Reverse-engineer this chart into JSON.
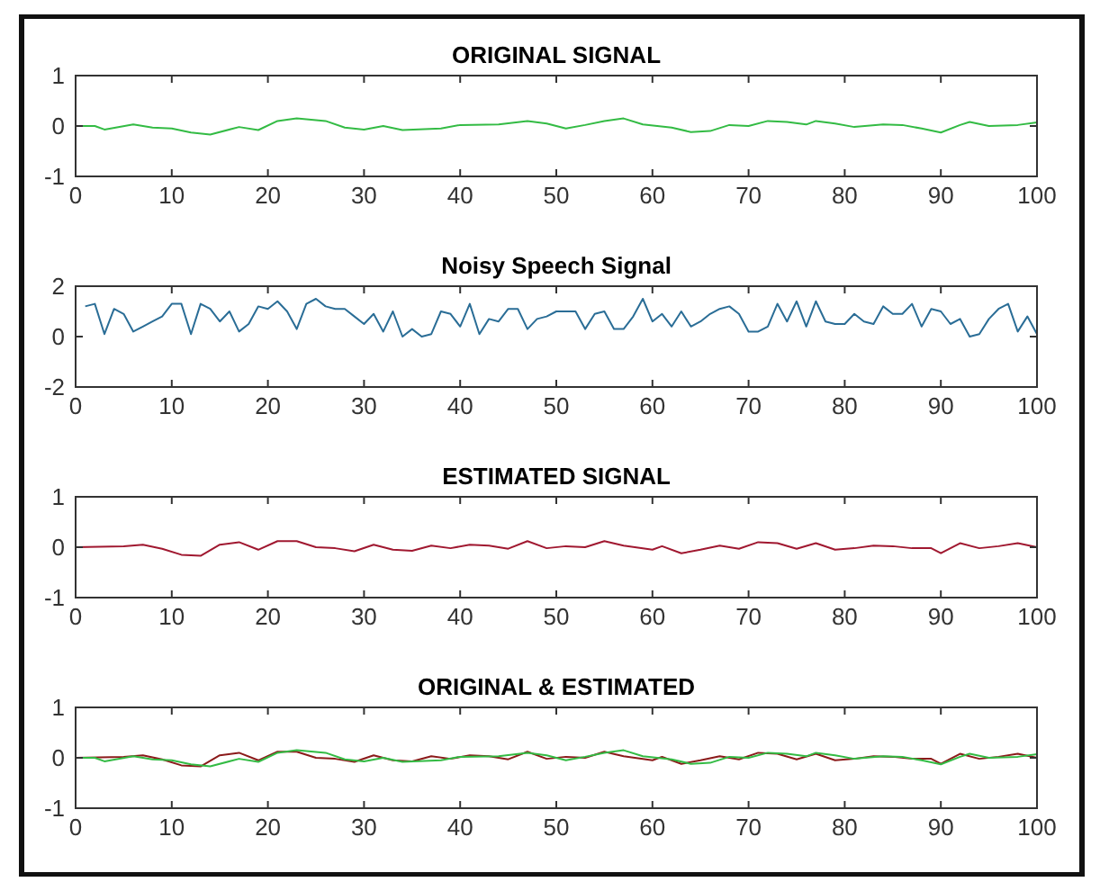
{
  "chart_data": [
    {
      "type": "line",
      "title": "ORIGINAL SIGNAL",
      "xlim": [
        0,
        100
      ],
      "ylim": [
        -1,
        1
      ],
      "xticks": [
        0,
        10,
        20,
        30,
        40,
        50,
        60,
        70,
        80,
        90,
        100
      ],
      "yticks": [
        -1,
        0,
        1
      ],
      "series": [
        {
          "color": "#33bb44",
          "x": [
            0,
            2,
            3,
            6,
            8,
            10,
            12,
            14,
            17,
            19,
            21,
            23,
            26,
            28,
            30,
            32,
            34,
            38,
            40,
            44,
            47,
            49,
            51,
            53,
            55,
            57,
            59,
            62,
            64,
            66,
            68,
            70,
            72,
            74,
            76,
            77,
            79,
            81,
            84,
            86,
            88,
            90,
            92,
            93,
            95,
            98,
            100
          ],
          "values": [
            0,
            0,
            -0.07,
            0.03,
            -0.03,
            -0.05,
            -0.13,
            -0.17,
            -0.02,
            -0.08,
            0.1,
            0.15,
            0.1,
            -0.03,
            -0.07,
            0,
            -0.08,
            -0.05,
            0.02,
            0.03,
            0.1,
            0.05,
            -0.05,
            0.02,
            0.1,
            0.15,
            0.03,
            -0.03,
            -0.12,
            -0.1,
            0.02,
            0,
            0.1,
            0.08,
            0.03,
            0.1,
            0.05,
            -0.02,
            0.03,
            0.02,
            -0.05,
            -0.13,
            0.02,
            0.08,
            0,
            0.02,
            0.07
          ]
        }
      ]
    },
    {
      "type": "line",
      "title": "Noisy Speech Signal",
      "xlim": [
        0,
        100
      ],
      "ylim": [
        -2,
        2
      ],
      "xticks": [
        0,
        10,
        20,
        30,
        40,
        50,
        60,
        70,
        80,
        90,
        100
      ],
      "yticks": [
        -2,
        0,
        2
      ],
      "series": [
        {
          "color": "#2a6d96",
          "x": [
            1,
            2,
            3,
            4,
            5,
            6,
            7,
            8,
            9,
            10,
            11,
            12,
            13,
            14,
            15,
            16,
            17,
            18,
            19,
            20,
            21,
            22,
            23,
            24,
            25,
            26,
            27,
            28,
            29,
            30,
            31,
            32,
            33,
            34,
            35,
            36,
            37,
            38,
            39,
            40,
            41,
            42,
            43,
            44,
            45,
            46,
            47,
            48,
            49,
            50,
            51,
            52,
            53,
            54,
            55,
            56,
            57,
            58,
            59,
            60,
            61,
            62,
            63,
            64,
            65,
            66,
            67,
            68,
            69,
            70,
            71,
            72,
            73,
            74,
            75,
            76,
            77,
            78,
            79,
            80,
            81,
            82,
            83,
            84,
            85,
            86,
            87,
            88,
            89,
            90,
            91,
            92,
            93,
            94,
            95,
            96,
            97,
            98,
            99,
            100
          ],
          "values": [
            1.2,
            1.3,
            0.1,
            1.1,
            0.9,
            0.2,
            0.4,
            0.6,
            0.8,
            1.3,
            1.3,
            0.1,
            1.3,
            1.1,
            0.6,
            1.0,
            0.2,
            0.5,
            1.2,
            1.1,
            1.4,
            1.0,
            0.3,
            1.3,
            1.5,
            1.2,
            1.1,
            1.1,
            0.8,
            0.5,
            0.9,
            0.2,
            1.0,
            0.0,
            0.3,
            0.0,
            0.1,
            1.0,
            0.9,
            0.4,
            1.3,
            0.1,
            0.7,
            0.6,
            1.1,
            1.1,
            0.3,
            0.7,
            0.8,
            1.0,
            1.0,
            1.0,
            0.3,
            0.9,
            1.0,
            0.3,
            0.3,
            0.8,
            1.5,
            0.6,
            0.9,
            0.4,
            1.0,
            0.4,
            0.6,
            0.9,
            1.1,
            1.2,
            0.9,
            0.2,
            0.2,
            0.4,
            1.3,
            0.6,
            1.4,
            0.4,
            1.4,
            0.6,
            0.5,
            0.5,
            0.9,
            0.6,
            0.5,
            1.2,
            0.9,
            0.9,
            1.3,
            0.4,
            1.1,
            1.0,
            0.5,
            0.7,
            0.0,
            0.1,
            0.7,
            1.1,
            1.3,
            0.2,
            0.8,
            0.1
          ]
        }
      ]
    },
    {
      "type": "line",
      "title": "ESTIMATED SIGNAL",
      "xlim": [
        0,
        100
      ],
      "ylim": [
        -1,
        1
      ],
      "xticks": [
        0,
        10,
        20,
        30,
        40,
        50,
        60,
        70,
        80,
        90,
        100
      ],
      "yticks": [
        -1,
        0,
        1
      ],
      "series": [
        {
          "color": "#a01830",
          "x": [
            0,
            5,
            7,
            9,
            11,
            13,
            15,
            17,
            19,
            21,
            23,
            25,
            27,
            29,
            31,
            33,
            35,
            37,
            39,
            41,
            43,
            45,
            47,
            49,
            51,
            53,
            55,
            57,
            60,
            61,
            63,
            65,
            67,
            69,
            71,
            73,
            75,
            77,
            79,
            81,
            83,
            85,
            87,
            89,
            90,
            92,
            94,
            96,
            98,
            100
          ],
          "values": [
            0,
            0.02,
            0.05,
            -0.03,
            -0.15,
            -0.17,
            0.05,
            0.1,
            -0.05,
            0.12,
            0.12,
            0,
            -0.02,
            -0.08,
            0.05,
            -0.05,
            -0.07,
            0.03,
            -0.02,
            0.05,
            0.03,
            -0.03,
            0.12,
            -0.02,
            0.02,
            0,
            0.12,
            0.03,
            -0.05,
            0.02,
            -0.12,
            -0.05,
            0.03,
            -0.03,
            0.1,
            0.08,
            -0.03,
            0.08,
            -0.05,
            -0.02,
            0.03,
            0.02,
            -0.02,
            -0.02,
            -0.12,
            0.08,
            -0.02,
            0.02,
            0.08,
            0
          ]
        }
      ]
    },
    {
      "type": "line",
      "title": "ORIGINAL & ESTIMATED",
      "xlim": [
        0,
        100
      ],
      "ylim": [
        -1,
        1
      ],
      "xticks": [
        0,
        10,
        20,
        30,
        40,
        50,
        60,
        70,
        80,
        90,
        100
      ],
      "yticks": [
        -1,
        0,
        1
      ],
      "series": [
        {
          "color": "#8b1a1a",
          "x": [
            0,
            5,
            7,
            9,
            11,
            13,
            15,
            17,
            19,
            21,
            23,
            25,
            27,
            29,
            31,
            33,
            35,
            37,
            39,
            41,
            43,
            45,
            47,
            49,
            51,
            53,
            55,
            57,
            60,
            61,
            63,
            65,
            67,
            69,
            71,
            73,
            75,
            77,
            79,
            81,
            83,
            85,
            87,
            89,
            90,
            92,
            94,
            96,
            98,
            100
          ],
          "values": [
            0,
            0.02,
            0.05,
            -0.03,
            -0.15,
            -0.17,
            0.05,
            0.1,
            -0.05,
            0.12,
            0.12,
            0,
            -0.02,
            -0.08,
            0.05,
            -0.05,
            -0.07,
            0.03,
            -0.02,
            0.05,
            0.03,
            -0.03,
            0.12,
            -0.02,
            0.02,
            0,
            0.12,
            0.03,
            -0.05,
            0.02,
            -0.12,
            -0.05,
            0.03,
            -0.03,
            0.1,
            0.08,
            -0.03,
            0.08,
            -0.05,
            -0.02,
            0.03,
            0.02,
            -0.02,
            -0.02,
            -0.12,
            0.08,
            -0.02,
            0.02,
            0.08,
            0
          ]
        },
        {
          "color": "#33bb44",
          "x": [
            0,
            2,
            3,
            6,
            8,
            10,
            12,
            14,
            17,
            19,
            21,
            23,
            26,
            28,
            30,
            32,
            34,
            38,
            40,
            44,
            47,
            49,
            51,
            53,
            55,
            57,
            59,
            62,
            64,
            66,
            68,
            70,
            72,
            74,
            76,
            77,
            79,
            81,
            84,
            86,
            88,
            90,
            92,
            93,
            95,
            98,
            100
          ],
          "values": [
            0,
            0,
            -0.07,
            0.03,
            -0.03,
            -0.05,
            -0.13,
            -0.17,
            -0.02,
            -0.08,
            0.1,
            0.15,
            0.1,
            -0.03,
            -0.07,
            0,
            -0.08,
            -0.05,
            0.02,
            0.03,
            0.1,
            0.05,
            -0.05,
            0.02,
            0.1,
            0.15,
            0.03,
            -0.03,
            -0.12,
            -0.1,
            0.02,
            0,
            0.1,
            0.08,
            0.03,
            0.1,
            0.05,
            -0.02,
            0.03,
            0.02,
            -0.05,
            -0.13,
            0.02,
            0.08,
            0,
            0.02,
            0.07
          ]
        }
      ]
    }
  ]
}
